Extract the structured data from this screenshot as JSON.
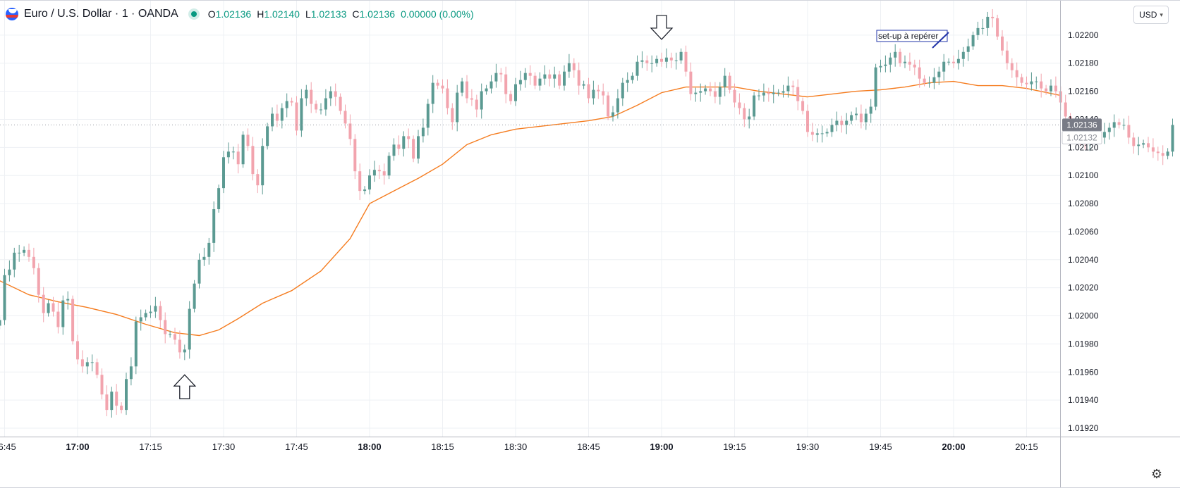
{
  "header": {
    "title": "Euro / U.S. Dollar · 1 · OANDA",
    "ohlc": [
      {
        "k": "O",
        "v": "1.02136"
      },
      {
        "k": "H",
        "v": "1.02140"
      },
      {
        "k": "L",
        "v": "1.02133"
      },
      {
        "k": "C",
        "v": "1.02136"
      },
      {
        "k": "",
        "v": "0.00000 (0.00%)"
      }
    ]
  },
  "currency_button": "USD",
  "icons": {
    "logo": "flag-icon",
    "settings": "gear-icon",
    "chevron": "chevron-down-icon"
  },
  "colors": {
    "up": "#5b9a92",
    "down": "#f2a4ae",
    "ma": "#f57c1f",
    "grid": "#eef0f4",
    "axis": "#131722",
    "price_badge": "#787b86"
  },
  "chart_data": {
    "type": "candlestick",
    "title": "",
    "timeframe": "1 minute",
    "x_ticks": [
      "16:45",
      "17:00",
      "17:15",
      "17:30",
      "17:45",
      "18:00",
      "18:15",
      "18:30",
      "18:45",
      "19:00",
      "19:15",
      "19:30",
      "19:45",
      "20:00",
      "20:15"
    ],
    "x_tick_bold": [
      "17:00",
      "18:00",
      "19:00",
      "20:00"
    ],
    "y_ticks": [
      "1.02200",
      "1.02180",
      "1.02160",
      "1.02140",
      "1.02120",
      "1.02100",
      "1.02080",
      "1.02060",
      "1.02040",
      "1.02020",
      "1.02000",
      "1.01980",
      "1.01960",
      "1.01940",
      "1.01920"
    ],
    "ylim": [
      1.01914,
      1.02225
    ],
    "last_price": "1.02136",
    "secondary_price": "1.02132",
    "annotation": "set-up à repérer",
    "arrows": [
      {
        "direction": "up",
        "time": "17:22",
        "price": 1.01958
      },
      {
        "direction": "down",
        "time": "19:00",
        "price": 1.02214
      }
    ],
    "candles_start": "16:44",
    "candle_close": [
      1.01997,
      1.02029,
      1.02033,
      1.02045,
      1.02045,
      1.02047,
      1.02042,
      1.02034,
      1.02015,
      1.02002,
      1.02009,
      1.02003,
      1.01992,
      1.02011,
      1.02012,
      1.01982,
      1.01969,
      1.01964,
      1.01967,
      1.01967,
      1.01958,
      1.01944,
      1.01933,
      1.01946,
      1.01936,
      1.01933,
      1.01955,
      1.01964,
      1.01996,
      1.01999,
      1.02002,
      1.02003,
      1.02007,
      1.01997,
      1.01987,
      1.01987,
      1.01983,
      1.01974,
      1.01976,
      1.02005,
      1.02023,
      1.0204,
      1.02042,
      1.02052,
      1.02076,
      1.02091,
      1.02113,
      1.02117,
      1.02117,
      1.02108,
      1.02129,
      1.02121,
      1.02101,
      1.02093,
      1.02121,
      1.02135,
      1.02144,
      1.02139,
      1.02148,
      1.02153,
      1.02152,
      1.02132,
      1.02155,
      1.02161,
      1.02151,
      1.02147,
      1.02147,
      1.02155,
      1.0216,
      1.02156,
      1.02146,
      1.02137,
      1.02126,
      1.02103,
      1.02089,
      1.0209,
      1.021,
      1.02104,
      1.02103,
      1.021,
      1.02114,
      1.02122,
      1.02119,
      1.02128,
      1.02126,
      1.02112,
      1.02128,
      1.02134,
      1.02151,
      1.02166,
      1.02164,
      1.02162,
      1.02148,
      1.02138,
      1.02159,
      1.02167,
      1.02155,
      1.02154,
      1.02147,
      1.0216,
      1.02162,
      1.02167,
      1.02173,
      1.02172,
      1.02158,
      1.02153,
      1.02165,
      1.02168,
      1.02173,
      1.02171,
      1.02164,
      1.02169,
      1.02172,
      1.02169,
      1.02172,
      1.02164,
      1.02174,
      1.0218,
      1.02175,
      1.02164,
      1.02165,
      1.02155,
      1.02161,
      1.0216,
      1.02157,
      1.02142,
      1.02145,
      1.02155,
      1.02166,
      1.02168,
      1.02171,
      1.02181,
      1.02182,
      1.0218,
      1.0218,
      1.02183,
      1.02181,
      1.02184,
      1.02182,
      1.02182,
      1.02188,
      1.02174,
      1.02158,
      1.02159,
      1.0216,
      1.02162,
      1.0216,
      1.02156,
      1.02163,
      1.02171,
      1.02161,
      1.02152,
      1.02148,
      1.0214,
      1.02142,
      1.02157,
      1.02157,
      1.02159,
      1.02158,
      1.02159,
      1.02159,
      1.0216,
      1.02164,
      1.02163,
      1.02153,
      1.02146,
      1.02131,
      1.02129,
      1.0213,
      1.0213,
      1.02131,
      1.02136,
      1.02139,
      1.02136,
      1.02139,
      1.02143,
      1.02144,
      1.02138,
      1.02144,
      1.02149,
      1.02177,
      1.02178,
      1.02179,
      1.02184,
      1.02188,
      1.0218,
      1.02181,
      1.02179,
      1.02177,
      1.02169,
      1.02166,
      1.02166,
      1.0217,
      1.02174,
      1.02181,
      1.02181,
      1.0218,
      1.02183,
      1.02188,
      1.02192,
      1.022,
      1.02205,
      1.02205,
      1.02213,
      1.02212,
      1.02199,
      1.02189,
      1.0218,
      1.02175,
      1.0217,
      1.02166,
      1.02165,
      1.02167,
      1.02167,
      1.02162,
      1.0216,
      1.02164,
      1.0216,
      1.02152,
      1.02142,
      1.02131,
      1.0213,
      1.02126,
      1.02124,
      1.02129,
      1.0213,
      1.02127,
      1.02131,
      1.02134,
      1.02138,
      1.02136,
      1.02136,
      1.02127,
      1.02121,
      1.02122,
      1.02123,
      1.0212,
      1.02117,
      1.02116,
      1.02114,
      1.02117,
      1.02136
    ],
    "moving_average": {
      "color": "#f57c1f",
      "points": [
        [
          "16:44",
          1.02025
        ],
        [
          "16:50",
          1.02015
        ],
        [
          "16:56",
          1.0201
        ],
        [
          "17:02",
          1.02006
        ],
        [
          "17:08",
          1.02001
        ],
        [
          "17:14",
          1.01994
        ],
        [
          "17:20",
          1.01988
        ],
        [
          "17:25",
          1.01986
        ],
        [
          "17:29",
          1.0199
        ],
        [
          "17:33",
          1.01998
        ],
        [
          "17:38",
          1.02009
        ],
        [
          "17:44",
          1.02018
        ],
        [
          "17:50",
          1.02032
        ],
        [
          "17:56",
          1.02055
        ],
        [
          "18:00",
          1.0208
        ],
        [
          "18:05",
          1.02089
        ],
        [
          "18:10",
          1.02098
        ],
        [
          "18:15",
          1.02108
        ],
        [
          "18:20",
          1.02122
        ],
        [
          "18:25",
          1.02129
        ],
        [
          "18:30",
          1.02133
        ],
        [
          "18:35",
          1.02135
        ],
        [
          "18:40",
          1.02137
        ],
        [
          "18:45",
          1.02139
        ],
        [
          "18:50",
          1.02142
        ],
        [
          "18:55",
          1.0215
        ],
        [
          "19:00",
          1.02159
        ],
        [
          "19:05",
          1.02163
        ],
        [
          "19:10",
          1.02163
        ],
        [
          "19:15",
          1.02163
        ],
        [
          "19:20",
          1.0216
        ],
        [
          "19:25",
          1.02158
        ],
        [
          "19:30",
          1.02156
        ],
        [
          "19:35",
          1.02158
        ],
        [
          "19:40",
          1.0216
        ],
        [
          "19:45",
          1.02161
        ],
        [
          "19:50",
          1.02163
        ],
        [
          "19:55",
          1.02166
        ],
        [
          "20:00",
          1.02167
        ],
        [
          "20:05",
          1.02164
        ],
        [
          "20:10",
          1.02164
        ],
        [
          "20:15",
          1.02162
        ],
        [
          "20:22",
          1.02157
        ]
      ]
    }
  }
}
